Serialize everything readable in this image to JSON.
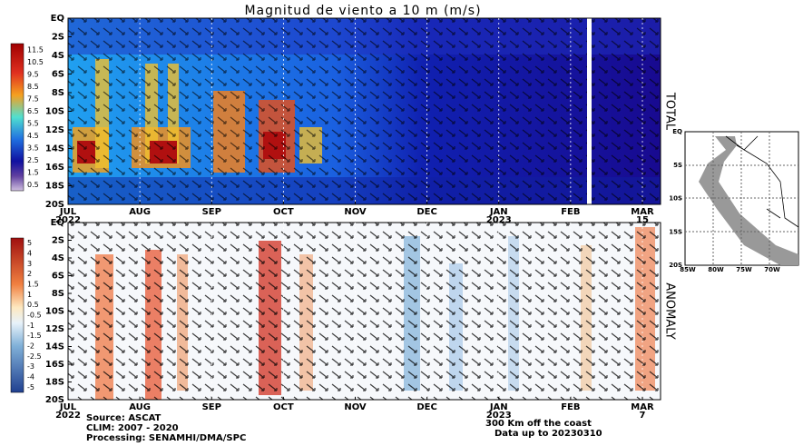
{
  "title": "Magnitud de viento a 10 m (m/s)",
  "panels": [
    {
      "label": "TOTAL",
      "colorbar": [
        11.5,
        10.5,
        9.5,
        8.5,
        7.5,
        6.5,
        5.5,
        4.5,
        3.5,
        2.5,
        1.5,
        0.5
      ],
      "yticks": [
        "EQ",
        "2S",
        "4S",
        "6S",
        "8S",
        "10S",
        "12S",
        "14S",
        "16S",
        "18S",
        "20S"
      ],
      "xticks": [
        {
          "month": "JUL",
          "sub": "2022"
        },
        {
          "month": "AUG"
        },
        {
          "month": "SEP"
        },
        {
          "month": "OCT"
        },
        {
          "month": "NOV"
        },
        {
          "month": "DEC"
        },
        {
          "month": "JAN",
          "sub": "2023"
        },
        {
          "month": "FEB"
        },
        {
          "month": "MAR",
          "sub": "15"
        }
      ]
    },
    {
      "label": "ANOMALY",
      "colorbar": [
        5,
        4,
        3,
        2,
        1.5,
        1,
        0.5,
        -0.5,
        -1,
        -1.5,
        -2,
        -2.5,
        -3,
        -4,
        -5
      ],
      "yticks": [
        "EQ",
        "2S",
        "4S",
        "6S",
        "8S",
        "10S",
        "12S",
        "14S",
        "16S",
        "18S",
        "20S"
      ],
      "xticks": [
        {
          "month": "JUL",
          "sub": "2022"
        },
        {
          "month": "AUG"
        },
        {
          "month": "SEP"
        },
        {
          "month": "OCT"
        },
        {
          "month": "NOV"
        },
        {
          "month": "DEC"
        },
        {
          "month": "JAN",
          "sub": "2023"
        },
        {
          "month": "FEB"
        },
        {
          "month": "MAR",
          "sub": "7"
        }
      ]
    }
  ],
  "map": {
    "yticks": [
      "EQ",
      "5S",
      "10S",
      "15S",
      "20S"
    ],
    "xticks": [
      "85W",
      "80W",
      "75W",
      "70W"
    ]
  },
  "footer": {
    "source": "Source: ASCAT",
    "clim": "CLIM: 2007 - 2020",
    "processing": "Processing: SENAMHI/DMA/SPC",
    "note": "300 Km off the coast",
    "date": "Data up to 20230310"
  }
}
